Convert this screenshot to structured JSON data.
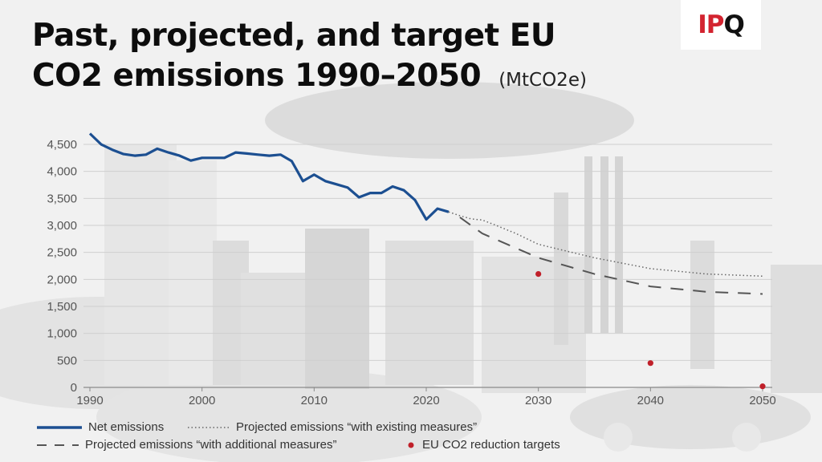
{
  "header": {
    "title_line1": "Past, projected, and target EU",
    "title_line2": "CO2 emissions 1990–2050",
    "subtitle": "(MtCO2e)"
  },
  "logo": {
    "part1": "IP",
    "part2": "Q"
  },
  "colors": {
    "net": "#1c4f91",
    "projected_existing": "#666666",
    "projected_additional": "#555555",
    "targets": "#c0202a",
    "logo_red": "#d3232f"
  },
  "chart_data": {
    "type": "line",
    "title": "Past, projected, and target EU CO2 emissions 1990–2050",
    "units": "(MtCO2e)",
    "xlim": [
      1990,
      2050
    ],
    "ylim": [
      0,
      4500
    ],
    "x_ticks": [
      1990,
      2000,
      2010,
      2020,
      2030,
      2040,
      2050
    ],
    "y_ticks": [
      0,
      500,
      1000,
      1500,
      2000,
      2500,
      3000,
      3500,
      4000,
      4500
    ],
    "grid": "horizontal",
    "legend_position": "bottom",
    "series": [
      {
        "name": "Net emissions",
        "style": "solid",
        "x": [
          1990,
          1991,
          1992,
          1993,
          1994,
          1995,
          1996,
          1997,
          1998,
          1999,
          2000,
          2001,
          2002,
          2003,
          2004,
          2005,
          2006,
          2007,
          2008,
          2009,
          2010,
          2011,
          2012,
          2013,
          2014,
          2015,
          2016,
          2017,
          2018,
          2019,
          2020,
          2021,
          2022
        ],
        "y": [
          4700,
          4500,
          4400,
          4320,
          4290,
          4310,
          4420,
          4350,
          4290,
          4200,
          4250,
          4250,
          4250,
          4350,
          4330,
          4310,
          4290,
          4310,
          4190,
          3820,
          3940,
          3820,
          3760,
          3700,
          3520,
          3600,
          3600,
          3720,
          3650,
          3470,
          3110,
          3310,
          3250
        ]
      },
      {
        "name": "Projected emissions “with existing measures”",
        "style": "dotted",
        "x": [
          2022,
          2023,
          2024,
          2025,
          2026,
          2028,
          2030,
          2035,
          2040,
          2045,
          2050
        ],
        "y": [
          3250,
          3180,
          3120,
          3100,
          3020,
          2850,
          2650,
          2400,
          2200,
          2100,
          2060
        ]
      },
      {
        "name": "Projected emissions “with additional measures”",
        "style": "dashed",
        "x": [
          2023,
          2025,
          2030,
          2035,
          2040,
          2045,
          2050
        ],
        "y": [
          3150,
          2850,
          2400,
          2100,
          1870,
          1770,
          1730
        ]
      },
      {
        "name": "EU CO2 reduction targets",
        "style": "points",
        "x": [
          2030,
          2040,
          2050
        ],
        "y": [
          2100,
          450,
          20
        ]
      }
    ]
  }
}
